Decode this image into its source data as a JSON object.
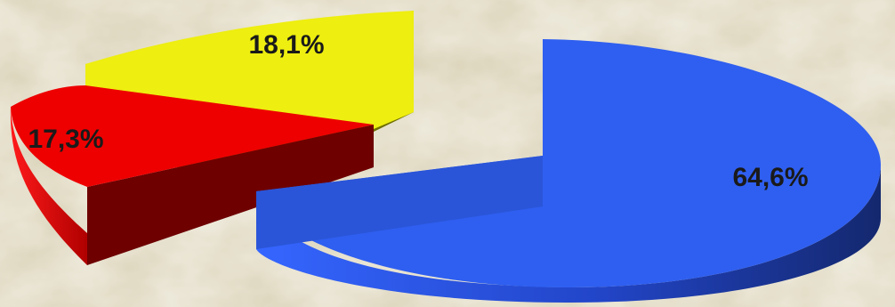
{
  "chart_data": {
    "type": "pie",
    "style": "3d-exploded",
    "title": "",
    "legend": "none",
    "slices": [
      {
        "label": "64,6%",
        "value": 64.6,
        "color": "#2f5ff0",
        "side_color": "#1c3a9c"
      },
      {
        "label": "17,3%",
        "value": 17.3,
        "color": "#ee0000",
        "side_color": "#6e0000"
      },
      {
        "label": "18,1%",
        "value": 18.1,
        "color": "#eeee10",
        "side_color": "#6e6e00"
      }
    ]
  },
  "background": {
    "base": "#e6e0c9",
    "mottle": "#cfc7a8"
  }
}
